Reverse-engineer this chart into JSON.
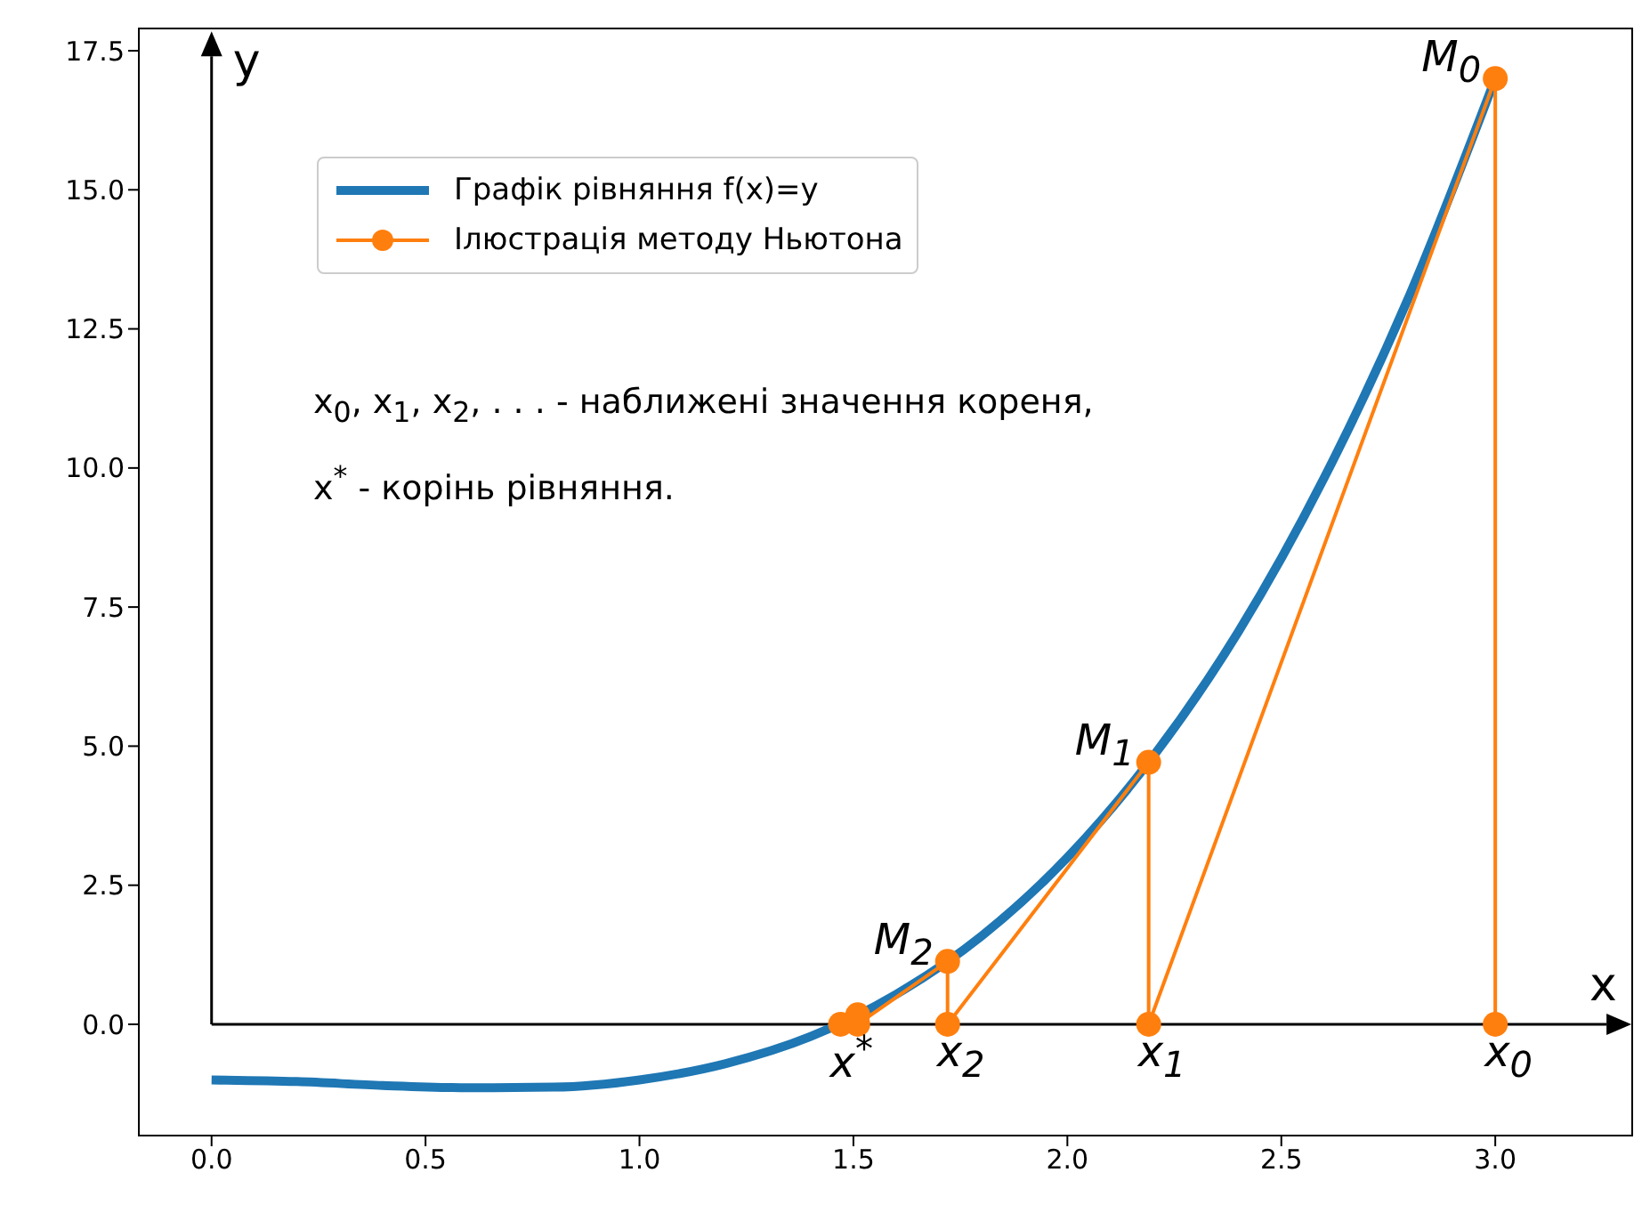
{
  "chart_data": {
    "type": "line",
    "xlim": [
      -0.17,
      3.32
    ],
    "ylim": [
      -2.0,
      17.9
    ],
    "xticks": [
      {
        "value": 0,
        "label": "0.0"
      },
      {
        "value": 0.5,
        "label": "0.5"
      },
      {
        "value": 1,
        "label": "1.0"
      },
      {
        "value": 1.5,
        "label": "1.5"
      },
      {
        "value": 2,
        "label": "2.0"
      },
      {
        "value": 2.5,
        "label": "2.5"
      },
      {
        "value": 3,
        "label": "3.0"
      }
    ],
    "yticks": [
      {
        "value": 0,
        "label": "0.0"
      },
      {
        "value": 2.5,
        "label": "2.5"
      },
      {
        "value": 5,
        "label": "5.0"
      },
      {
        "value": 7.5,
        "label": "7.5"
      },
      {
        "value": 10,
        "label": "10.0"
      },
      {
        "value": 12.5,
        "label": "12.5"
      },
      {
        "value": 15,
        "label": "15.0"
      },
      {
        "value": 17.5,
        "label": "17.5"
      }
    ],
    "grid": false,
    "legend": "top left",
    "series": [
      {
        "name": "Графік рівняння f(x)=y",
        "color": "#1f77b4",
        "marker": "none",
        "x": [
          0,
          0.2,
          0.4,
          0.6,
          0.8,
          1.0,
          1.2,
          1.4,
          1.6,
          1.8,
          2.0,
          2.2,
          2.4,
          2.6,
          2.8,
          3.0
        ],
        "values": [
          -1,
          -1.03,
          -1.1,
          -1.14,
          -1.13,
          -1,
          -0.71,
          -0.22,
          0.54,
          1.59,
          3,
          4.81,
          7.06,
          9.82,
          13.11,
          17
        ]
      },
      {
        "name": "Ілюстрація методу Ньютона",
        "color": "#ff7f0e",
        "marker": "circle",
        "x": [
          3,
          3,
          2.19,
          2.19,
          1.72,
          1.72,
          1.51,
          1.51,
          1.47
        ],
        "values": [
          0,
          17,
          0,
          4.71,
          0,
          1.13,
          0,
          0.17,
          0
        ]
      }
    ],
    "ref_lines": [
      {
        "axis": "y",
        "value": 0,
        "color": "#000000",
        "label": "x"
      },
      {
        "axis": "x",
        "value": 0,
        "color": "#000000",
        "label": "y"
      }
    ],
    "annotations": [
      "x$_{0}$, x$_{1}$, x$_{2}$, . . . - наближені значення кореня,",
      "x$^{*}$ - корінь рівняння.",
      {
        "text": "M$_{0}$",
        "x": 3,
        "y": 17
      },
      {
        "text": "M$_{1}$",
        "x": 2.19,
        "y": 4.71
      },
      {
        "text": "M$_{2}$",
        "x": 1.72,
        "y": 1.13
      },
      {
        "text": "x$_{0}$",
        "x": 3,
        "y": 0
      },
      {
        "text": "x$_{1}$",
        "x": 2.19,
        "y": 0
      },
      {
        "text": "x$_{2}$",
        "x": 1.72,
        "y": 0
      },
      {
        "text": "x$^{*}$",
        "x": 1.47,
        "y": 0
      }
    ]
  }
}
